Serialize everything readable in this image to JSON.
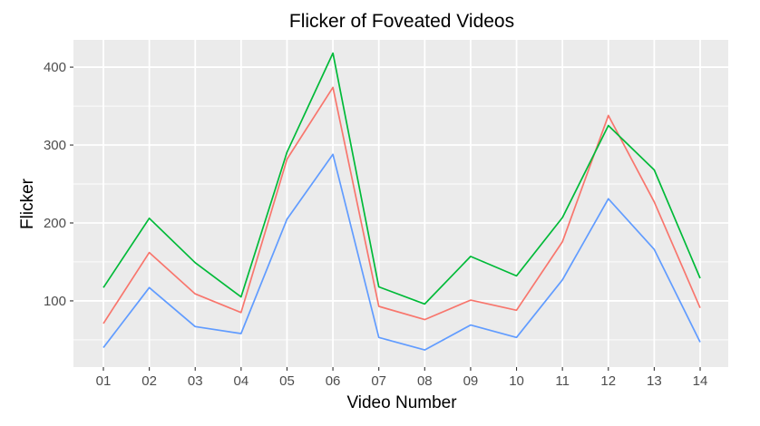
{
  "chart_data": {
    "type": "line",
    "title": "Flicker of Foveated Videos",
    "xlabel": "Video Number",
    "ylabel": "Flicker",
    "categories": [
      "01",
      "02",
      "03",
      "04",
      "05",
      "06",
      "07",
      "08",
      "09",
      "10",
      "11",
      "12",
      "13",
      "14"
    ],
    "ylim": [
      15,
      435
    ],
    "yticks": [
      100,
      200,
      300,
      400
    ],
    "grid": true,
    "legend": "none",
    "series": [
      {
        "name": "red-series",
        "color": "#F8766D",
        "values": [
          71,
          162,
          109,
          85,
          282,
          374,
          93,
          76,
          101,
          88,
          176,
          338,
          227,
          91
        ]
      },
      {
        "name": "green-series",
        "color": "#00BA38",
        "values": [
          117,
          206,
          149,
          105,
          291,
          418,
          118,
          96,
          157,
          132,
          207,
          325,
          268,
          129
        ]
      },
      {
        "name": "blue-series",
        "color": "#619CFF",
        "values": [
          40,
          117,
          67,
          58,
          205,
          288,
          53,
          37,
          69,
          53,
          127,
          231,
          166,
          47
        ]
      }
    ]
  }
}
